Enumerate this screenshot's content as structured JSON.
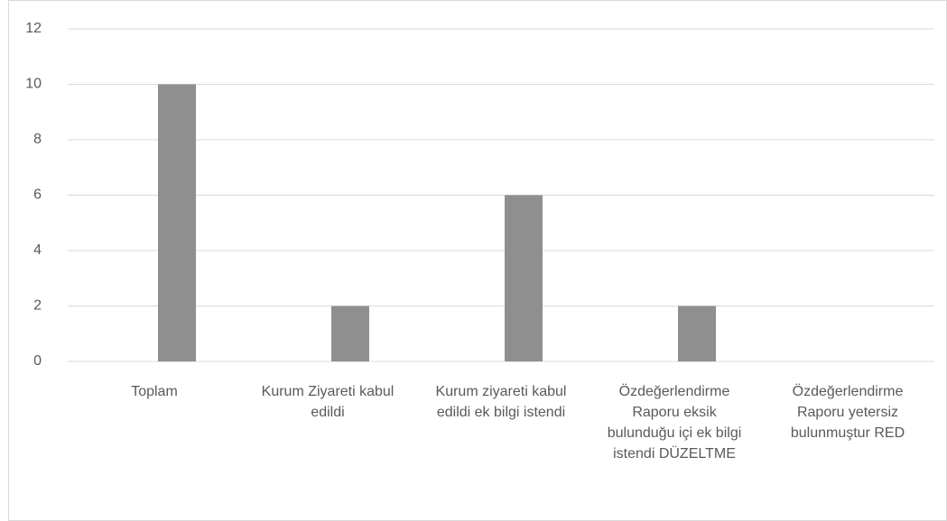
{
  "chart_data": {
    "type": "bar",
    "categories": [
      "Toplam",
      "Kurum Ziyareti kabul edildi",
      "Kurum ziyareti kabul edildi ek bilgi istendi",
      "Özdeğerlendirme Raporu eksik bulunduğu içi ek bilgi istendi DÜZELTME",
      "Özdeğerlendirme Raporu yetersiz bulunmuştur RED"
    ],
    "values": [
      10,
      2,
      6,
      2,
      0
    ],
    "color": "#8f8f8f",
    "ylim": [
      0,
      12
    ],
    "yticks": [
      0,
      2,
      4,
      6,
      8,
      10,
      12
    ],
    "grid": true
  }
}
